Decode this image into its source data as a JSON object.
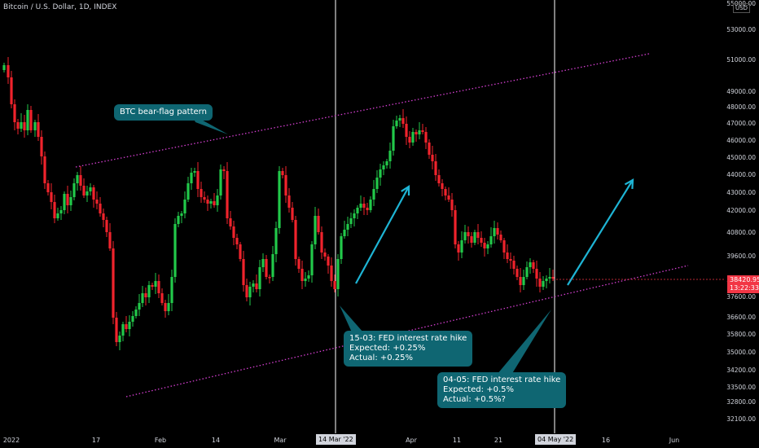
{
  "header": {
    "title": "Bitcoin / U.S. Dollar, 1D, INDEX",
    "currency": "USD"
  },
  "annotations": {
    "pattern_label": "BTC bear-flag pattern",
    "fed1": {
      "line1": "15-03: FED interest rate hike",
      "line2": "Expected: +0.25%",
      "line3": "Actual: +0.25%"
    },
    "fed2": {
      "line1": "04-05: FED interest rate hike",
      "line2": "Expected: +0.5%",
      "line3": "Actual: +0.5%?"
    }
  },
  "price_readout": {
    "price": "38420.95",
    "countdown": "13:22:33"
  },
  "x_markers": {
    "mar14": "14 Mar '22",
    "may04": "04 May '22"
  },
  "colors": {
    "up": "#22c94a",
    "down": "#f0232c",
    "channel": "#d43fd0",
    "arrow": "#1eb4d4",
    "callout": "#0f6672",
    "vline": "#ffffff"
  },
  "chart_data": {
    "type": "candlestick",
    "title": "Bitcoin / U.S. Dollar, 1D, INDEX",
    "y_ticks": [
      "55000.00",
      "53000.00",
      "51000.00",
      "49000.00",
      "48000.00",
      "47000.00",
      "46000.00",
      "45000.00",
      "44000.00",
      "43000.00",
      "42000.00",
      "40800.00",
      "39600.00",
      "38400.00",
      "37600.00",
      "36600.00",
      "35800.00",
      "35000.00",
      "34200.00",
      "33500.00",
      "32800.00",
      "32100.00"
    ],
    "x_ticks": [
      "2022",
      "17",
      "Feb",
      "14",
      "Mar",
      "Apr",
      "11",
      "21",
      "16",
      "Jun"
    ],
    "last_price": 38420.95,
    "ohlc_sample": [
      {
        "date": "2022-01-03",
        "o": 47300,
        "h": 47600,
        "l": 45800,
        "c": 46450
      },
      {
        "date": "2022-01-10",
        "o": 41800,
        "h": 43200,
        "l": 39700,
        "c": 41900
      },
      {
        "date": "2022-01-24",
        "o": 36200,
        "h": 37500,
        "l": 33000,
        "c": 36900
      },
      {
        "date": "2022-02-10",
        "o": 44500,
        "h": 45800,
        "l": 43200,
        "c": 43600
      },
      {
        "date": "2022-02-24",
        "o": 37200,
        "h": 39800,
        "l": 34400,
        "c": 38600
      },
      {
        "date": "2022-03-14",
        "o": 37800,
        "h": 39200,
        "l": 37600,
        "c": 39100
      },
      {
        "date": "2022-03-28",
        "o": 46800,
        "h": 48200,
        "l": 46600,
        "c": 47100
      },
      {
        "date": "2022-04-11",
        "o": 42100,
        "h": 42400,
        "l": 39300,
        "c": 39500
      },
      {
        "date": "2022-05-02",
        "o": 38500,
        "h": 39200,
        "l": 37700,
        "c": 38420.95
      }
    ],
    "lines": [
      {
        "name": "BTC bear-flag pattern",
        "style": "dotted"
      }
    ]
  }
}
